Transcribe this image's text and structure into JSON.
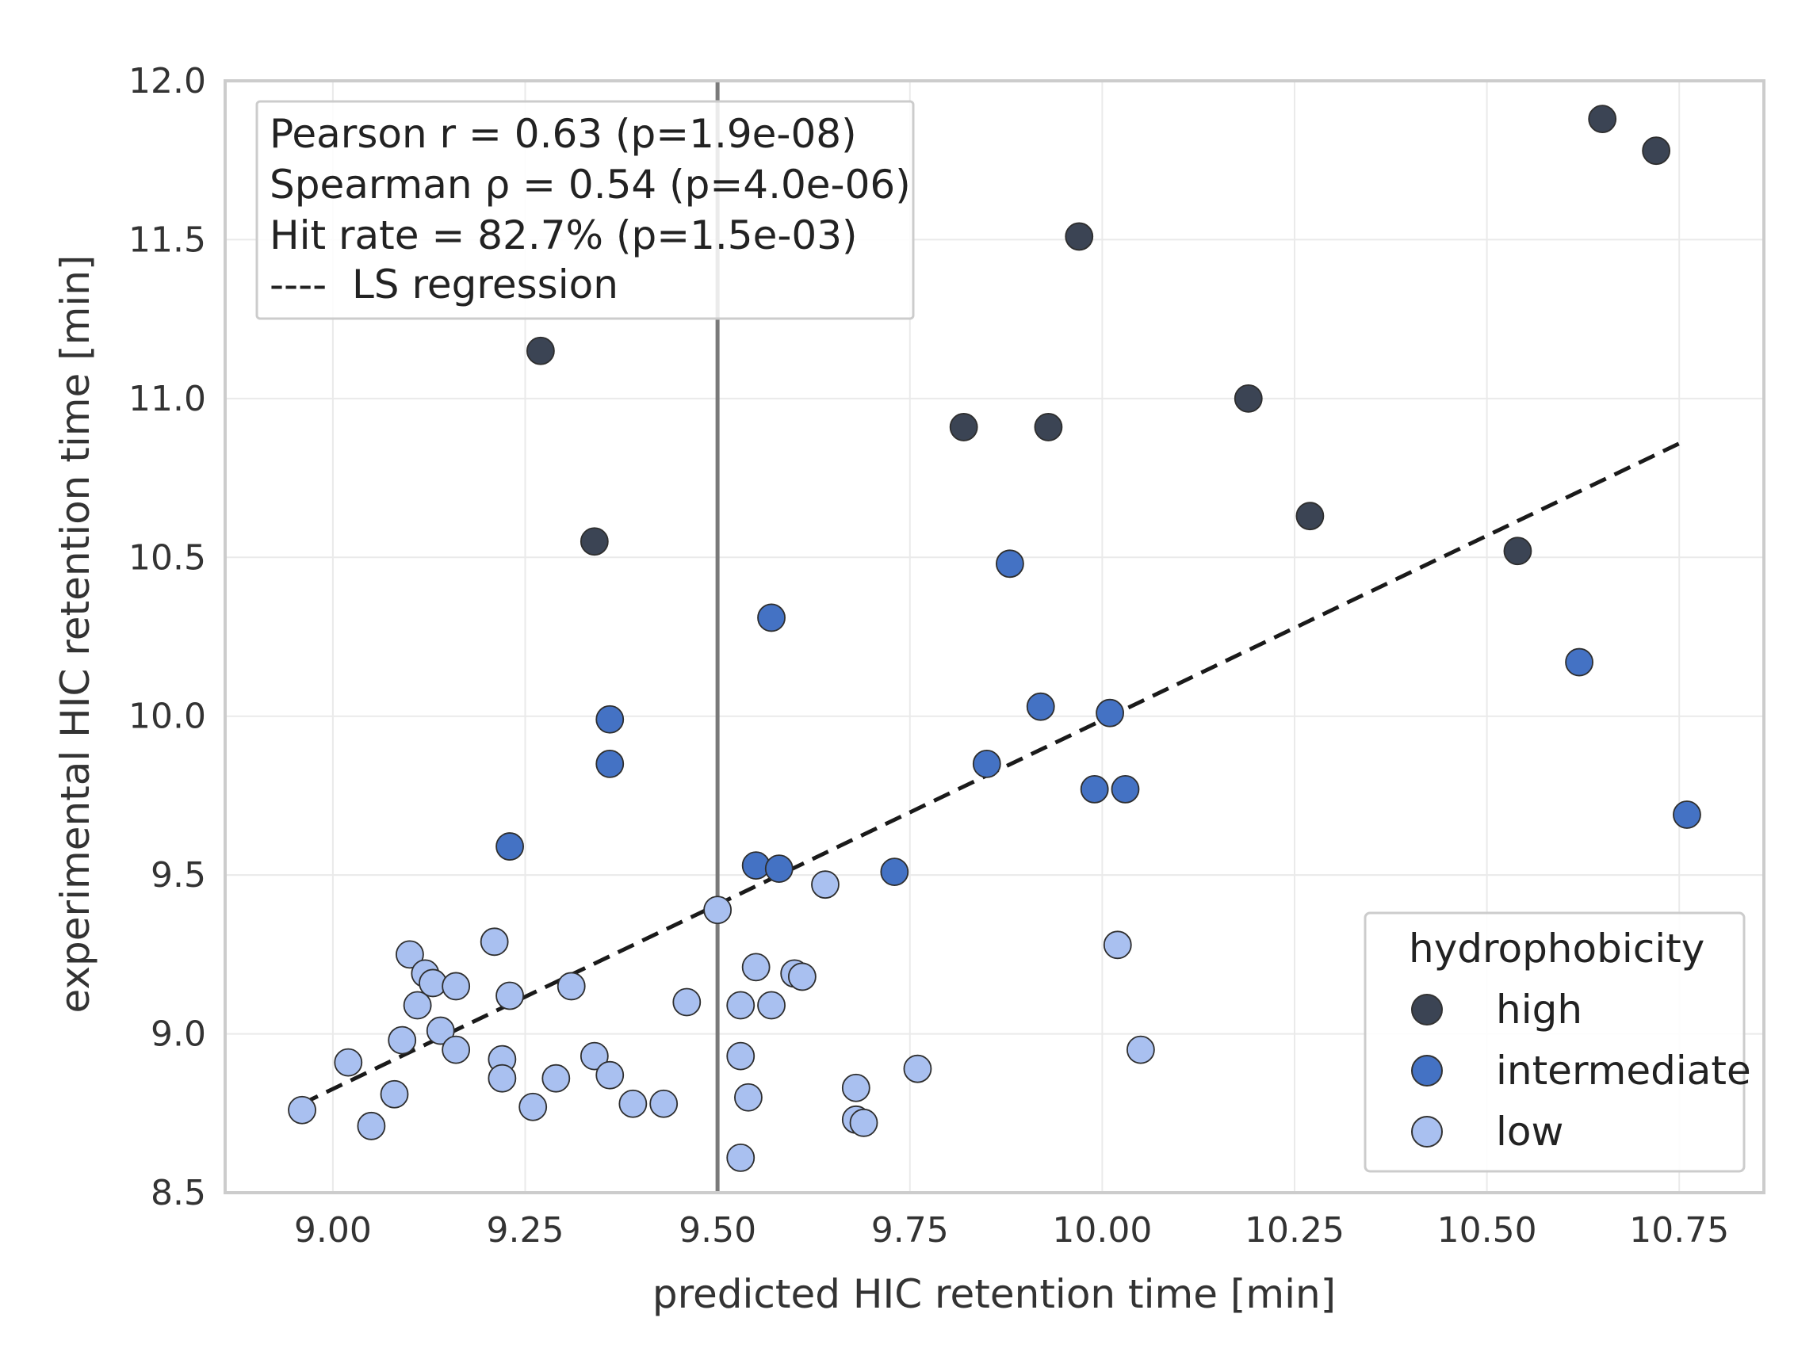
{
  "chart_data": {
    "type": "scatter",
    "title": "",
    "xlabel": "predicted HIC retention time [min]",
    "ylabel": "experimental HIC retention time [min]",
    "xlim": [
      8.86,
      10.86
    ],
    "ylim": [
      8.5,
      12.0
    ],
    "xticks": [
      9.0,
      9.25,
      9.5,
      9.75,
      10.0,
      10.25,
      10.5,
      10.75
    ],
    "xtick_labels": [
      "9.00",
      "9.25",
      "9.50",
      "9.75",
      "10.00",
      "10.25",
      "10.50",
      "10.75"
    ],
    "yticks": [
      8.5,
      9.0,
      9.5,
      10.0,
      10.5,
      11.0,
      11.5,
      12.0
    ],
    "ytick_labels": [
      "8.5",
      "9.0",
      "9.5",
      "10.0",
      "10.5",
      "11.0",
      "11.5",
      "12.0"
    ],
    "grid": true,
    "vertical_line_x": 9.5,
    "regression": {
      "label": "LS regression",
      "x": [
        8.96,
        10.76
      ],
      "y": [
        8.78,
        10.87
      ]
    },
    "annotations": [
      "Pearson r = 0.63 (p=1.9e-08)",
      "Spearman ρ = 0.54 (p=4.0e-06)",
      "Hit rate = 82.7% (p=1.5e-03)"
    ],
    "regression_legend": "----  LS regression",
    "legend": {
      "title": "hydrophobicity",
      "position": "lower-right"
    },
    "series": [
      {
        "name": "high",
        "color": "#3b4454",
        "points": [
          [
            9.27,
            11.15
          ],
          [
            9.34,
            10.55
          ],
          [
            9.82,
            10.91
          ],
          [
            9.93,
            10.91
          ],
          [
            9.97,
            11.51
          ],
          [
            10.19,
            11.0
          ],
          [
            10.27,
            10.63
          ],
          [
            10.54,
            10.52
          ],
          [
            10.65,
            11.88
          ],
          [
            10.72,
            11.78
          ]
        ]
      },
      {
        "name": "intermediate",
        "color": "#4472c4",
        "points": [
          [
            9.23,
            9.59
          ],
          [
            9.36,
            9.99
          ],
          [
            9.36,
            9.85
          ],
          [
            9.55,
            9.53
          ],
          [
            9.57,
            10.31
          ],
          [
            9.58,
            9.52
          ],
          [
            9.73,
            9.51
          ],
          [
            9.85,
            9.85
          ],
          [
            9.88,
            10.48
          ],
          [
            9.92,
            10.03
          ],
          [
            9.99,
            9.77
          ],
          [
            10.01,
            10.01
          ],
          [
            10.03,
            9.77
          ],
          [
            10.62,
            10.17
          ],
          [
            10.76,
            9.69
          ]
        ]
      },
      {
        "name": "low",
        "color": "#a9c0f0",
        "points": [
          [
            8.96,
            8.76
          ],
          [
            9.02,
            8.91
          ],
          [
            9.05,
            8.71
          ],
          [
            9.08,
            8.81
          ],
          [
            9.09,
            8.98
          ],
          [
            9.1,
            9.25
          ],
          [
            9.11,
            9.09
          ],
          [
            9.12,
            9.19
          ],
          [
            9.13,
            9.16
          ],
          [
            9.14,
            9.01
          ],
          [
            9.16,
            9.15
          ],
          [
            9.16,
            8.95
          ],
          [
            9.21,
            9.29
          ],
          [
            9.22,
            8.92
          ],
          [
            9.22,
            8.86
          ],
          [
            9.23,
            9.12
          ],
          [
            9.26,
            8.77
          ],
          [
            9.29,
            8.86
          ],
          [
            9.31,
            9.15
          ],
          [
            9.34,
            8.93
          ],
          [
            9.36,
            8.87
          ],
          [
            9.39,
            8.78
          ],
          [
            9.43,
            8.78
          ],
          [
            9.46,
            9.1
          ],
          [
            9.5,
            9.39
          ],
          [
            9.53,
            8.93
          ],
          [
            9.53,
            9.09
          ],
          [
            9.53,
            8.61
          ],
          [
            9.54,
            8.8
          ],
          [
            9.55,
            9.21
          ],
          [
            9.57,
            9.09
          ],
          [
            9.6,
            9.19
          ],
          [
            9.61,
            9.18
          ],
          [
            9.64,
            9.47
          ],
          [
            9.68,
            8.83
          ],
          [
            9.68,
            8.73
          ],
          [
            9.69,
            8.72
          ],
          [
            9.76,
            8.89
          ],
          [
            10.02,
            9.28
          ],
          [
            10.05,
            8.95
          ]
        ]
      }
    ]
  }
}
